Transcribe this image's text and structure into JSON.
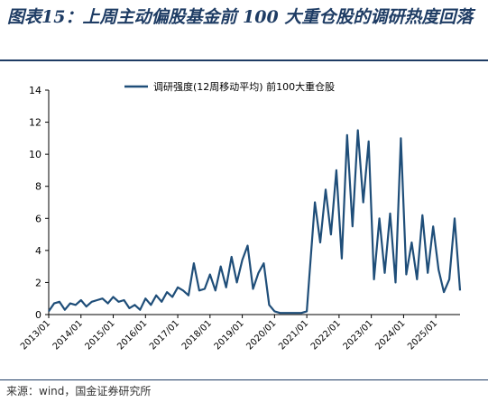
{
  "title": "图表15：上周主动偏股基金前 100 大重仓股的调研热度回落",
  "source": "来源：wind，国金证券研究所",
  "colors": {
    "title": "#1e3c64",
    "line": "#1f4e79",
    "axis": "#000000"
  },
  "chart_data": {
    "type": "line",
    "title": "",
    "xlabel": "",
    "ylabel": "",
    "ylim": [
      0,
      14
    ],
    "yticks": [
      "0",
      "2",
      "4",
      "6",
      "8",
      "10",
      "12",
      "14"
    ],
    "xticks": [
      "2013/01",
      "2014/01",
      "2015/01",
      "2016/01",
      "2017/01",
      "2018/01",
      "2019/01",
      "2020/01",
      "2021/01",
      "2022/01",
      "2023/01",
      "2024/01",
      "2025/01"
    ],
    "x_range": [
      "2013/01",
      "2025/10"
    ],
    "grid": false,
    "legend_position": "top-center",
    "series": [
      {
        "name": "调研强度(12周移动平均) 前100大重仓股",
        "color": "#1f4e79",
        "x": [
          "2013/01",
          "2013/03",
          "2013/05",
          "2013/07",
          "2013/09",
          "2013/11",
          "2014/01",
          "2014/03",
          "2014/05",
          "2014/07",
          "2014/09",
          "2014/11",
          "2015/01",
          "2015/03",
          "2015/05",
          "2015/07",
          "2015/09",
          "2015/11",
          "2016/01",
          "2016/03",
          "2016/05",
          "2016/07",
          "2016/09",
          "2016/11",
          "2017/01",
          "2017/03",
          "2017/05",
          "2017/07",
          "2017/09",
          "2017/11",
          "2018/01",
          "2018/03",
          "2018/05",
          "2018/07",
          "2018/09",
          "2018/11",
          "2019/01",
          "2019/03",
          "2019/05",
          "2019/07",
          "2019/09",
          "2019/11",
          "2020/01",
          "2020/03",
          "2020/05",
          "2020/07",
          "2020/09",
          "2020/11",
          "2021/01",
          "2021/02",
          "2021/04",
          "2021/06",
          "2021/08",
          "2021/10",
          "2021/12",
          "2022/02",
          "2022/04",
          "2022/06",
          "2022/08",
          "2022/10",
          "2022/12",
          "2023/02",
          "2023/04",
          "2023/06",
          "2023/08",
          "2023/10",
          "2023/12",
          "2024/02",
          "2024/04",
          "2024/06",
          "2024/08",
          "2024/10",
          "2024/12",
          "2025/02",
          "2025/04",
          "2025/06",
          "2025/08",
          "2025/10"
        ],
        "values": [
          0.2,
          0.7,
          0.8,
          0.3,
          0.7,
          0.6,
          0.9,
          0.5,
          0.8,
          0.9,
          1.0,
          0.7,
          1.1,
          0.8,
          0.9,
          0.4,
          0.6,
          0.3,
          1.0,
          0.6,
          1.2,
          0.8,
          1.4,
          1.1,
          1.7,
          1.5,
          1.2,
          3.2,
          1.5,
          1.6,
          2.5,
          1.5,
          3.0,
          1.7,
          3.6,
          2.0,
          3.4,
          4.3,
          1.6,
          2.6,
          3.2,
          0.6,
          0.2,
          0.1,
          0.1,
          0.1,
          0.1,
          0.1,
          0.2,
          2.5,
          7.0,
          4.5,
          7.8,
          5.0,
          9.0,
          3.5,
          11.2,
          5.5,
          11.5,
          7.0,
          10.8,
          2.2,
          6.0,
          2.6,
          6.3,
          2.0,
          11.0,
          2.5,
          4.5,
          2.2,
          6.2,
          2.6,
          5.5,
          2.8,
          1.4,
          2.2,
          6.0,
          1.5
        ]
      }
    ]
  }
}
